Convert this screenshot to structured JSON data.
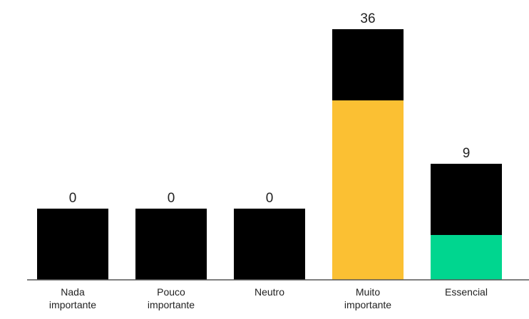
{
  "chart_data": {
    "type": "bar",
    "categories": [
      [
        "Nada",
        "importante"
      ],
      [
        "Pouco",
        "importante"
      ],
      [
        "Neutro"
      ],
      [
        "Muito",
        "importante"
      ],
      [
        "Essencial"
      ]
    ],
    "values": [
      0,
      0,
      0,
      36,
      9
    ],
    "value_labels": [
      "0",
      "0",
      "0",
      "36",
      "9"
    ],
    "title": "",
    "xlabel": "",
    "ylabel": "",
    "grid": false,
    "legend": "none"
  },
  "colors": {
    "bar_top": "#000000",
    "bar_fill": [
      "#000000",
      "#000000",
      "#000000",
      "#fbc033",
      "#00d68f"
    ],
    "axis": "#555555"
  }
}
